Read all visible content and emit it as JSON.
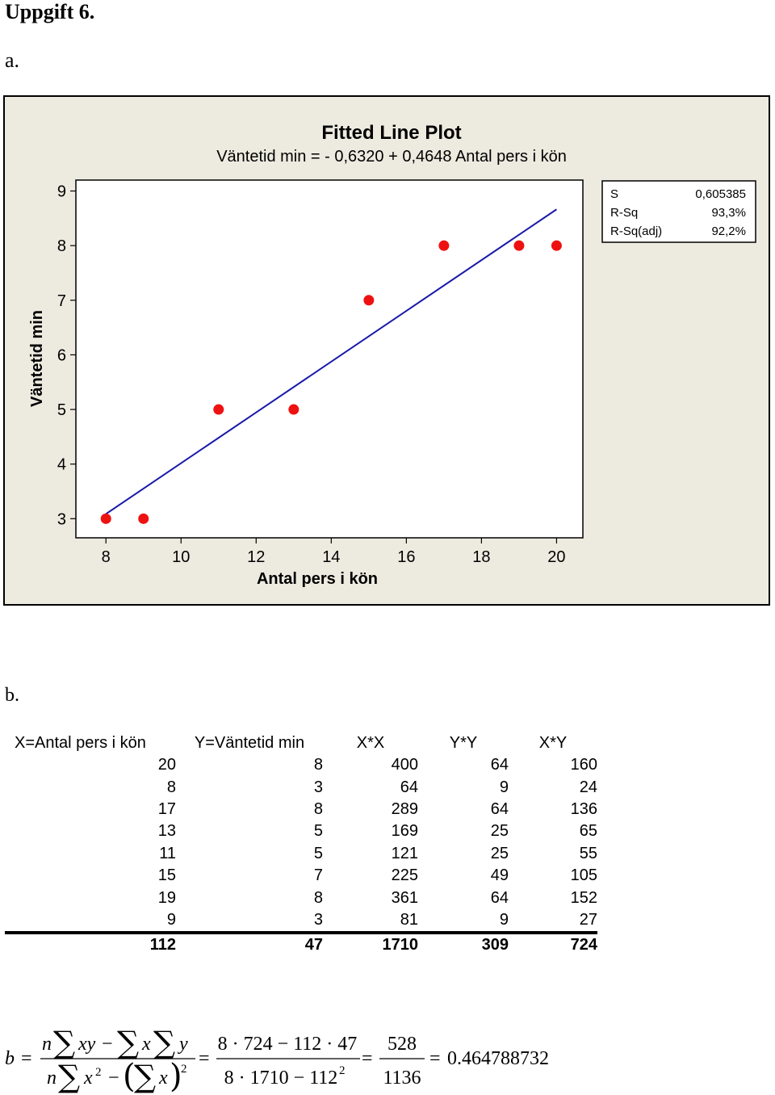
{
  "headings": {
    "main": "Uppgift 6.",
    "part_a": "a.",
    "part_b": "b."
  },
  "chart_data": {
    "type": "scatter",
    "title": "Fitted Line Plot",
    "subtitle": "Väntetid min =  - 0,6320 + 0,4648 Antal pers i kön",
    "xlabel": "Antal pers i kön",
    "ylabel": "Väntetid min",
    "xlim": [
      7.2,
      20.7
    ],
    "ylim": [
      2.65,
      9.2
    ],
    "x_ticks": [
      8,
      10,
      12,
      14,
      16,
      18,
      20
    ],
    "y_ticks": [
      3,
      4,
      5,
      6,
      7,
      8,
      9
    ],
    "points": {
      "x": [
        8,
        9,
        11,
        13,
        15,
        17,
        19,
        20
      ],
      "y": [
        3,
        3,
        5,
        5,
        7,
        8,
        8,
        8
      ]
    },
    "fit": {
      "intercept": -0.632,
      "slope": 0.4648,
      "x_range": [
        8,
        20
      ]
    },
    "grid": false,
    "colors": {
      "point": "#ee1111",
      "line": "#1a1aaa",
      "background": "#edebe0",
      "plot_area": "#ffffff"
    },
    "stats": [
      {
        "label": "S",
        "value": "0,605385"
      },
      {
        "label": "R-Sq",
        "value": "93,3%"
      },
      {
        "label": "R-Sq(adj)",
        "value": "92,2%"
      }
    ]
  },
  "table": {
    "headers": [
      "X=Antal pers i kön",
      "Y=Väntetid min",
      "X*X",
      "Y*Y",
      "X*Y"
    ],
    "rows": [
      [
        "20",
        "8",
        "400",
        "64",
        "160"
      ],
      [
        "8",
        "3",
        "64",
        "9",
        "24"
      ],
      [
        "17",
        "8",
        "289",
        "64",
        "136"
      ],
      [
        "13",
        "5",
        "169",
        "25",
        "65"
      ],
      [
        "11",
        "5",
        "121",
        "25",
        "55"
      ],
      [
        "15",
        "7",
        "225",
        "49",
        "105"
      ],
      [
        "19",
        "8",
        "361",
        "64",
        "152"
      ],
      [
        "9",
        "3",
        "81",
        "9",
        "27"
      ]
    ],
    "sums": [
      "112",
      "47",
      "1710",
      "309",
      "724"
    ]
  },
  "formula": {
    "lhs": "b",
    "eq": "=",
    "sum": "∑",
    "n": "n",
    "xy": "xy",
    "x": "x",
    "y": "y",
    "x2": "x",
    "sup2": "2",
    "minus": "−",
    "lpar": "(",
    "rpar": ")",
    "num2": "8 · 724 − 112 · 47",
    "den2": "8 · 1710 − 112",
    "num3": "528",
    "den3": "1136",
    "result": "0.464788732"
  }
}
